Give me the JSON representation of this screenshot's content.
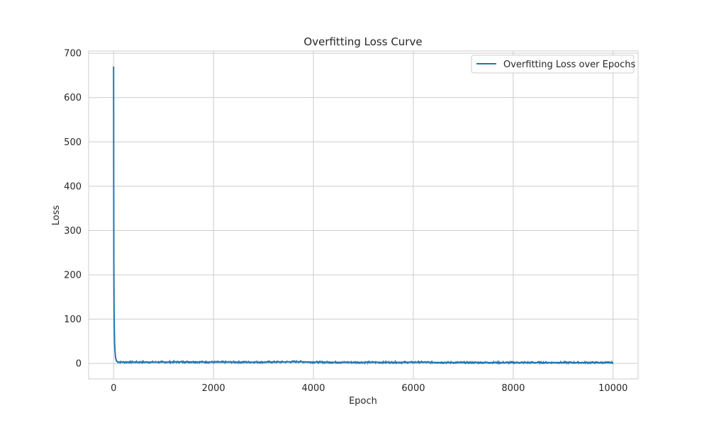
{
  "chart_data": {
    "type": "line",
    "title": "Overfitting Loss Curve",
    "xlabel": "Epoch",
    "ylabel": "Loss",
    "xlim": [
      -500,
      10500
    ],
    "ylim": [
      -35,
      705
    ],
    "xticks": [
      0,
      2000,
      4000,
      6000,
      8000,
      10000
    ],
    "xtick_labels": [
      "0",
      "2000",
      "4000",
      "6000",
      "8000",
      "10000"
    ],
    "yticks": [
      0,
      100,
      200,
      300,
      400,
      500,
      600,
      700
    ],
    "ytick_labels": [
      "0",
      "100",
      "200",
      "300",
      "400",
      "500",
      "600",
      "700"
    ],
    "grid": true,
    "legend_position": "top-right",
    "series": [
      {
        "name": "Overfitting Loss over Epochs",
        "color": "#1f77b4",
        "x": [
          0,
          2,
          5,
          10,
          15,
          20,
          30,
          40,
          60,
          100,
          500,
          1000,
          1500,
          2000,
          2500,
          3000,
          3500,
          3700,
          4000,
          4500,
          5000,
          5500,
          6000,
          6100,
          6500,
          7000,
          7500,
          8000,
          8500,
          9000,
          9500,
          10000
        ],
        "y": [
          670,
          420,
          220,
          110,
          75,
          45,
          25,
          12,
          5,
          3,
          3,
          3,
          3.5,
          3,
          3,
          3,
          3.5,
          4,
          3,
          2.5,
          2.5,
          2.5,
          2.5,
          3,
          2.2,
          2,
          2,
          2,
          2,
          2,
          2,
          1.8
        ]
      }
    ]
  }
}
